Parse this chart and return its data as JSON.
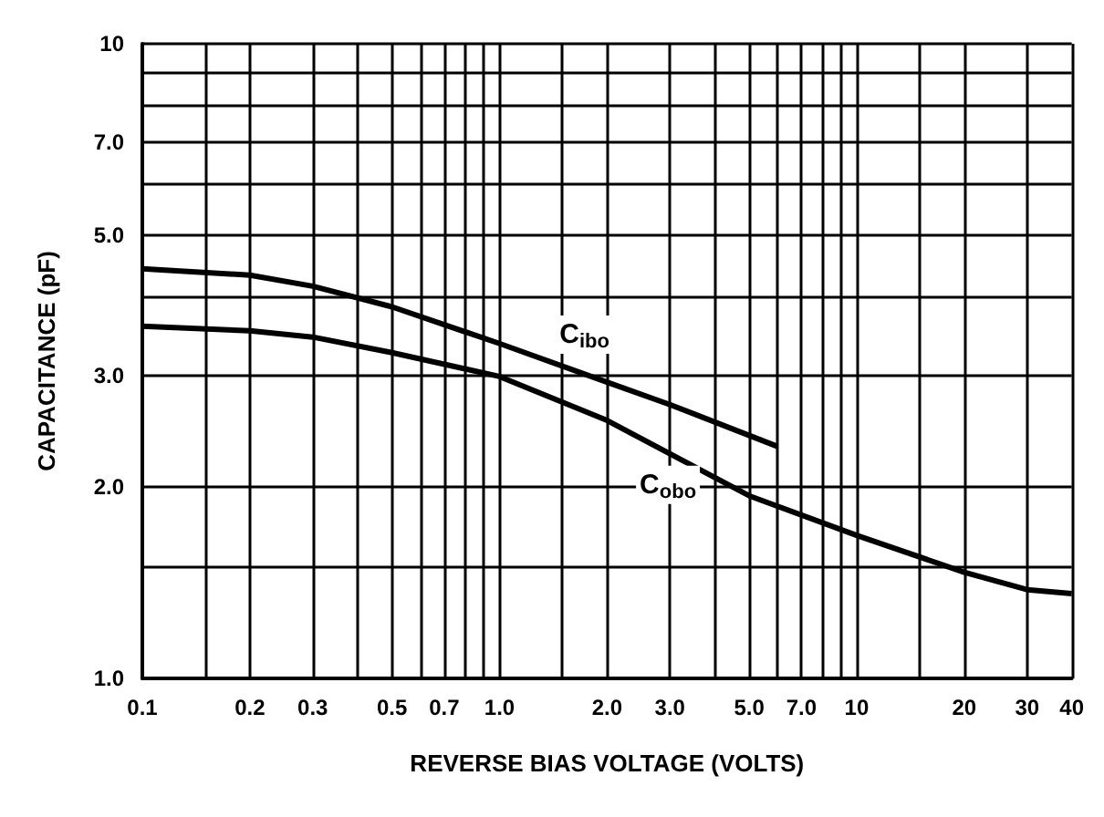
{
  "chart_data": {
    "type": "line",
    "xlabel": "REVERSE BIAS VOLTAGE (VOLTS)",
    "ylabel": "CAPACITANCE (pF)",
    "log": "xy",
    "xlim": [
      0.1,
      40
    ],
    "ylim": [
      1,
      10
    ],
    "xticks": [
      0.1,
      {
        "value": 0.15,
        "label": null
      },
      0.2,
      0.3,
      {
        "value": 0.4,
        "label": null
      },
      0.5,
      {
        "value": 0.6,
        "label": null
      },
      0.7,
      {
        "value": 0.8,
        "label": null
      },
      {
        "value": 0.9,
        "label": null
      },
      {
        "value": 1,
        "label": "1.0"
      },
      {
        "value": 1.5,
        "label": null
      },
      {
        "value": 2,
        "label": "2.0"
      },
      {
        "value": 3,
        "label": "3.0"
      },
      {
        "value": 4,
        "label": null
      },
      {
        "value": 5,
        "label": "5.0"
      },
      {
        "value": 6,
        "label": null
      },
      {
        "value": 7,
        "label": "7.0"
      },
      {
        "value": 8,
        "label": null
      },
      {
        "value": 9,
        "label": null
      },
      10,
      {
        "value": 15,
        "label": null
      },
      20,
      30,
      40
    ],
    "yticks": [
      {
        "value": 1,
        "label": "1.0"
      },
      {
        "value": 1.5,
        "label": null
      },
      {
        "value": 2,
        "label": "2.0"
      },
      {
        "value": 3,
        "label": "3.0"
      },
      {
        "value": 4,
        "label": null
      },
      {
        "value": 5,
        "label": "5.0"
      },
      {
        "value": 6,
        "label": null
      },
      {
        "value": 7,
        "label": "7.0"
      },
      {
        "value": 8,
        "label": null
      },
      {
        "value": 9,
        "label": null
      },
      10
    ],
    "grid": true,
    "marker": "none",
    "line_style": "solid",
    "series": [
      {
        "name": "C$_{ibo}$",
        "color": "#000000",
        "x": [
          0.1,
          0.2,
          0.3,
          0.5,
          1,
          2,
          3,
          6
        ],
        "values": [
          4.42,
          4.32,
          4.15,
          3.85,
          3.37,
          2.93,
          2.7,
          2.32
        ]
      },
      {
        "name": "C$_{obo}$",
        "color": "#000000",
        "x": [
          0.1,
          0.2,
          0.3,
          0.5,
          1,
          2,
          5,
          10,
          20,
          30,
          40
        ],
        "values": [
          3.59,
          3.53,
          3.45,
          3.26,
          2.99,
          2.55,
          1.94,
          1.68,
          1.47,
          1.38,
          1.36
        ]
      }
    ]
  }
}
